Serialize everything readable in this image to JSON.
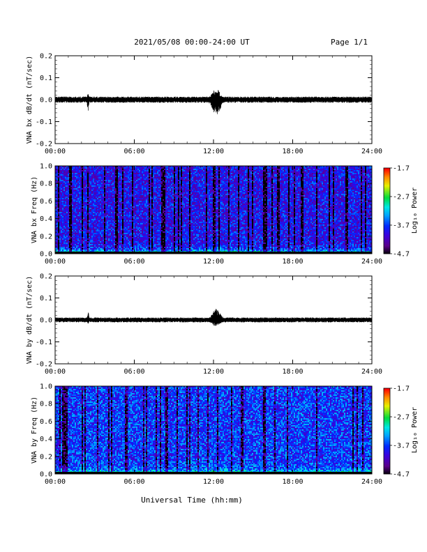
{
  "header": {
    "title": "2021/05/08  00:00-24:00 UT",
    "page": "Page 1/1"
  },
  "xaxis": {
    "label": "Universal Time (hh:mm)",
    "range_hours": [
      0,
      24
    ],
    "ticks": [
      "00:00",
      "06:00",
      "12:00",
      "18:00",
      "24:00"
    ]
  },
  "chart_data": [
    {
      "type": "line",
      "ylabel": "VNA bx dB/dt (nT/sec)",
      "ylim": [
        -0.2,
        0.2
      ],
      "yticks": [
        "0.2",
        "0.1",
        "0.0",
        "-0.1",
        "-0.2"
      ],
      "x_units": "hours UT",
      "baseline_amplitude": 0.01,
      "peaks": [
        {
          "x": 2.5,
          "ymax": 0.03,
          "ymin": -0.05
        },
        {
          "x": 12.2,
          "ymax": 0.05,
          "ymin": -0.07
        }
      ]
    },
    {
      "type": "heatmap",
      "ylabel": "VNA bx Freq (Hz)",
      "ylim": [
        0.0,
        1.0
      ],
      "yticks": [
        "1.0",
        "0.8",
        "0.6",
        "0.4",
        "0.2",
        "0.0"
      ],
      "colorbar": {
        "label": "Log₁₀ Power",
        "ticks": [
          "-1.7",
          "-2.7",
          "-3.7",
          "-4.7"
        ],
        "range": [
          -4.7,
          -1.7
        ]
      },
      "typical_power_low_freq": -2.4,
      "typical_power_high_freq": -3.9
    },
    {
      "type": "line",
      "ylabel": "VNA by dB/dt (nT/sec)",
      "ylim": [
        -0.2,
        0.2
      ],
      "yticks": [
        "0.2",
        "0.1",
        "0.0",
        "-0.1",
        "-0.2"
      ],
      "x_units": "hours UT",
      "baseline_amplitude": 0.008,
      "peaks": [
        {
          "x": 2.5,
          "ymax": 0.04,
          "ymin": -0.02
        },
        {
          "x": 12.2,
          "ymax": 0.05,
          "ymin": -0.03
        }
      ]
    },
    {
      "type": "heatmap",
      "ylabel": "VNA by Freq (Hz)",
      "ylim": [
        0.0,
        1.0
      ],
      "yticks": [
        "1.0",
        "0.8",
        "0.6",
        "0.4",
        "0.2",
        "0.0"
      ],
      "colorbar": {
        "label": "Log₁₀ Power",
        "ticks": [
          "-1.7",
          "-2.7",
          "-3.7",
          "-4.7"
        ],
        "range": [
          -4.7,
          -1.7
        ]
      },
      "typical_power_low_freq": -2.4,
      "typical_power_high_freq": -3.7
    }
  ]
}
